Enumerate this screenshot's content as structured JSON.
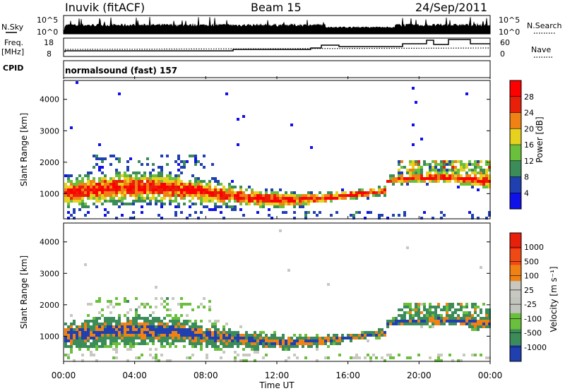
{
  "header": {
    "station": "Inuvik (fitACF)",
    "beam": "Beam 15",
    "date": "24/Sep/2011"
  },
  "nsky_panel": {
    "left_label": "N.Sky",
    "left_ticks": [
      "10^5",
      "10^0"
    ],
    "right_label": "N.Search",
    "right_ticks": [
      "10^5",
      "10^0"
    ]
  },
  "freq_panel": {
    "left_label_1": "Freq.",
    "left_label_2": "[MHz]",
    "left_ticks": [
      "18",
      "8"
    ],
    "right_label": "Nave",
    "right_ticks": [
      "60",
      "0"
    ]
  },
  "cpid": {
    "label": "CPID",
    "value": "normalsound (fast) 157"
  },
  "colors": {
    "power_scale": [
      "#1010e8",
      "#2040b0",
      "#3c8c5a",
      "#6abf3c",
      "#e6d21e",
      "#f08214",
      "#e8200a",
      "#ff0000"
    ],
    "velocity_scale": [
      "#e8200a",
      "#f04a14",
      "#f08214",
      "#c8c8c0",
      "#c0c4bc",
      "#6abf3c",
      "#3c8c5a",
      "#2040b0"
    ]
  },
  "chart_data": [
    {
      "type": "heatmap",
      "name": "power",
      "ylabel": "Slant Range [km]",
      "yticks": [
        "1000",
        "2000",
        "3000",
        "4000"
      ],
      "ylim": [
        200,
        4600
      ],
      "colorbar_label": "Power [dB]",
      "colorbar_ticks": [
        "4",
        "8",
        "12",
        "16",
        "20",
        "24",
        "28"
      ],
      "colorbar_range": [
        0,
        30
      ]
    },
    {
      "type": "heatmap",
      "name": "velocity",
      "ylabel": "Slant Range [km]",
      "yticks": [
        "1000",
        "2000",
        "3000",
        "4000"
      ],
      "ylim": [
        200,
        4600
      ],
      "colorbar_label": "Velocity [m s⁻¹]",
      "colorbar_ticks": [
        "1000",
        "500",
        "100",
        "25",
        "-25",
        "-100",
        "-500",
        "-1000"
      ]
    }
  ],
  "xaxis": {
    "label": "Time UT",
    "ticks": [
      "00:00",
      "04:00",
      "08:00",
      "12:00",
      "16:00",
      "20:00",
      "00:00"
    ]
  }
}
